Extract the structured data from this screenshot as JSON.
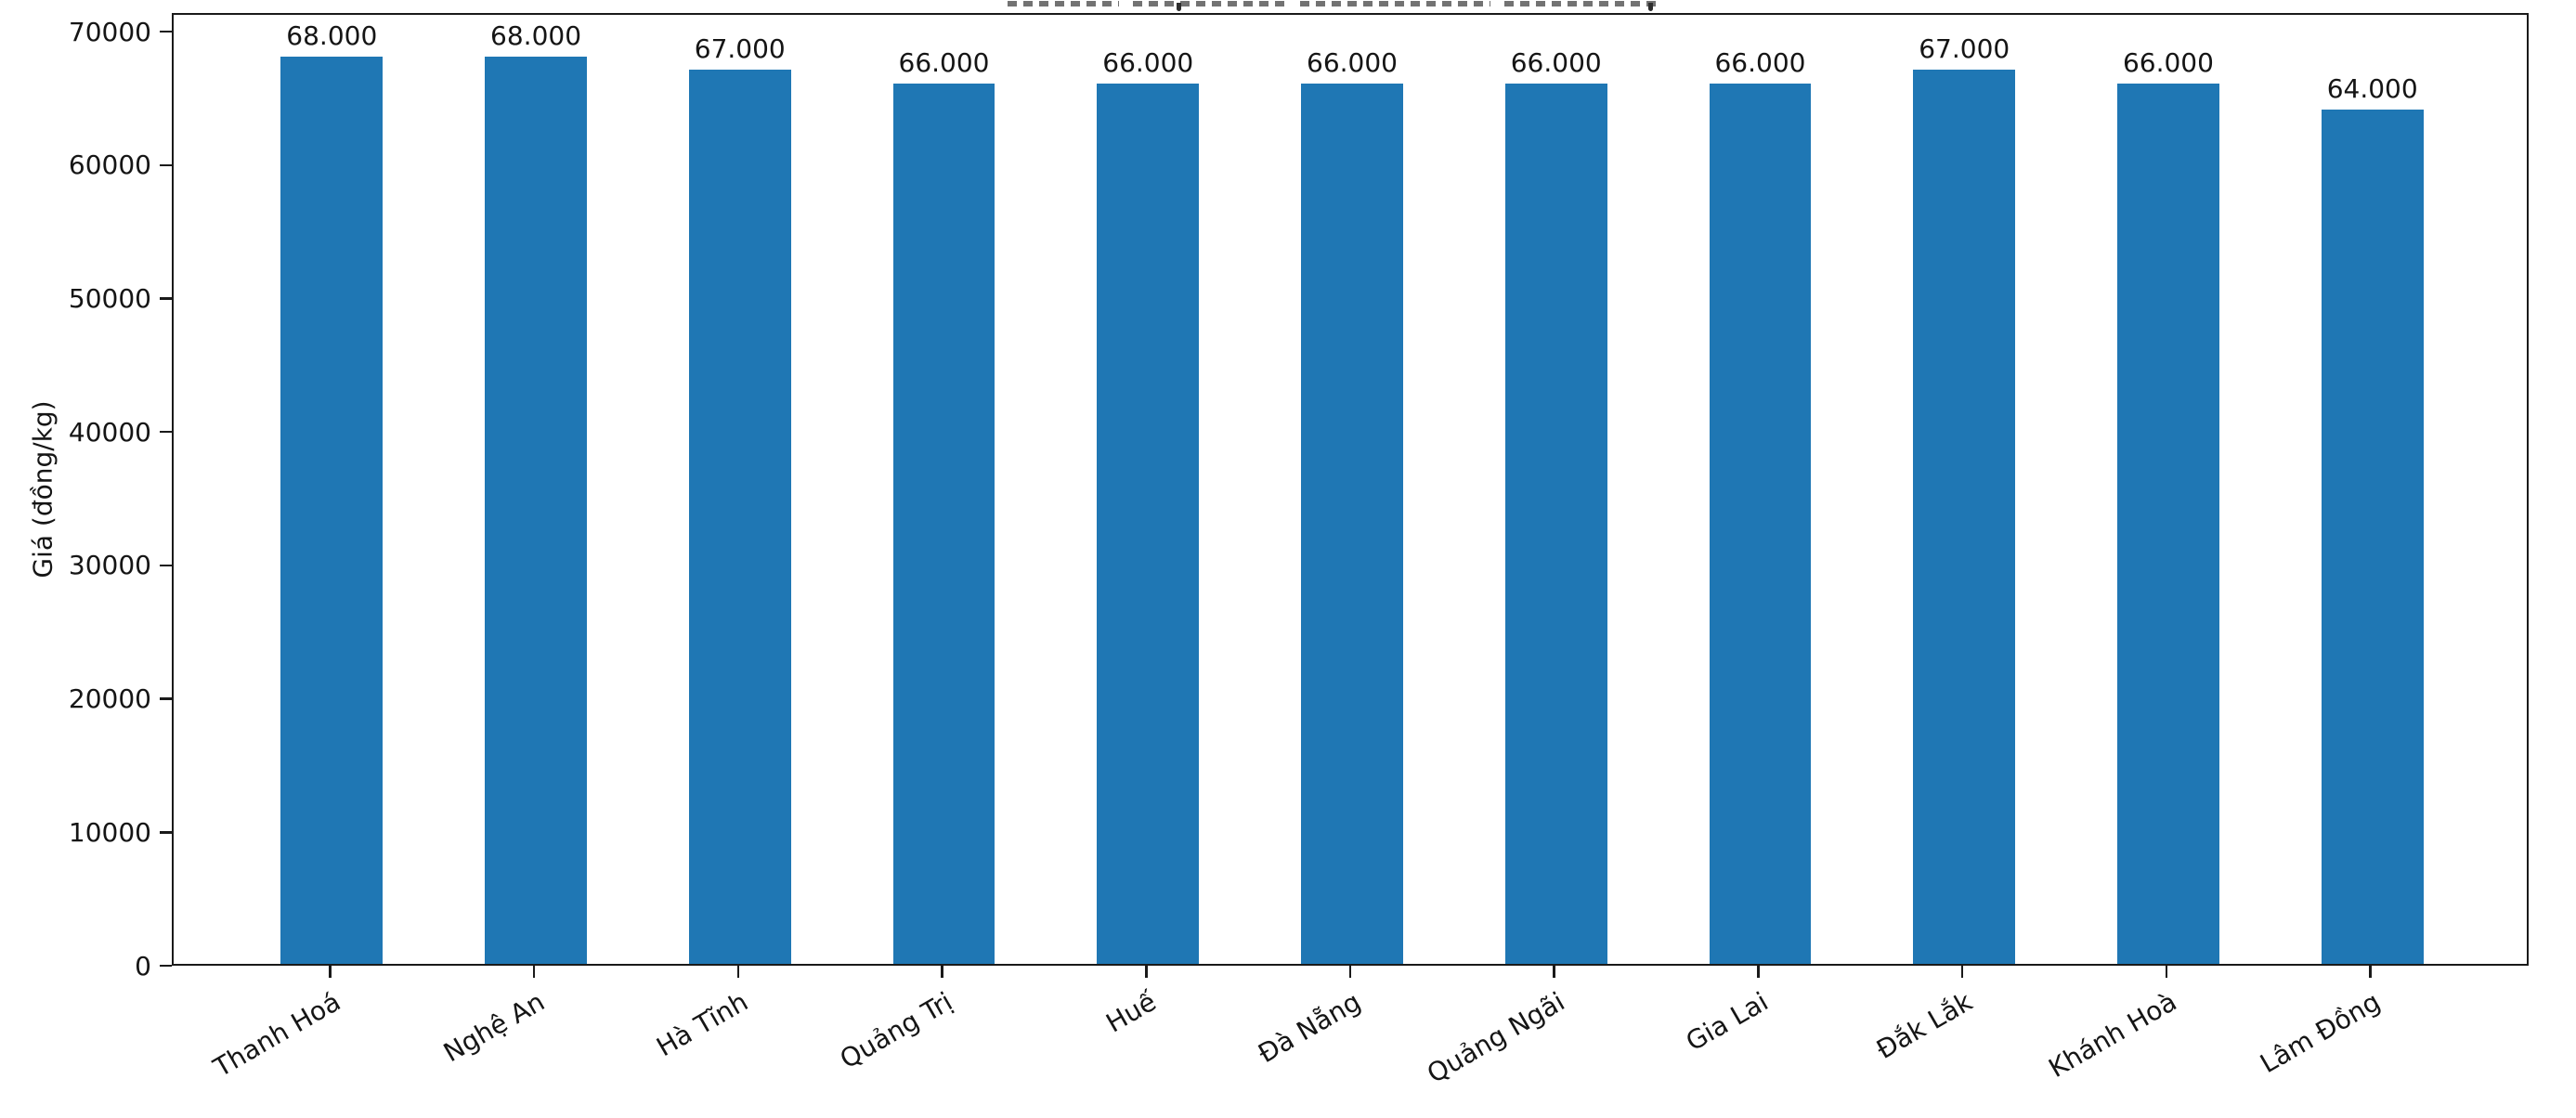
{
  "chart_data": {
    "type": "bar",
    "title": "",
    "xlabel": "",
    "ylabel": "Giá (đồng/kg)",
    "categories": [
      "Thanh Hoá",
      "Nghệ An",
      "Hà Tĩnh",
      "Quảng Trị",
      "Huế",
      "Đà Nẵng",
      "Quảng Ngãi",
      "Gia Lai",
      "Đắk Lắk",
      "Khánh Hoà",
      "Lâm Đồng"
    ],
    "values": [
      68000,
      68000,
      67000,
      66000,
      66000,
      66000,
      66000,
      66000,
      67000,
      66000,
      64000
    ],
    "bar_labels": [
      "68.000",
      "68.000",
      "67.000",
      "66.000",
      "66.000",
      "66.000",
      "66.000",
      "66.000",
      "67.000",
      "66.000",
      "64.000"
    ],
    "yticks": [
      0,
      10000,
      20000,
      30000,
      40000,
      50000,
      60000,
      70000
    ],
    "ytick_labels": [
      "0",
      "10000",
      "20000",
      "30000",
      "40000",
      "50000",
      "60000",
      "70000"
    ],
    "ylim": [
      0,
      71400
    ],
    "bar_color": "#1f77b4",
    "axis_color": "#1a1a1a",
    "grid": false,
    "legend": false,
    "x_tick_rotation_deg": 30
  }
}
